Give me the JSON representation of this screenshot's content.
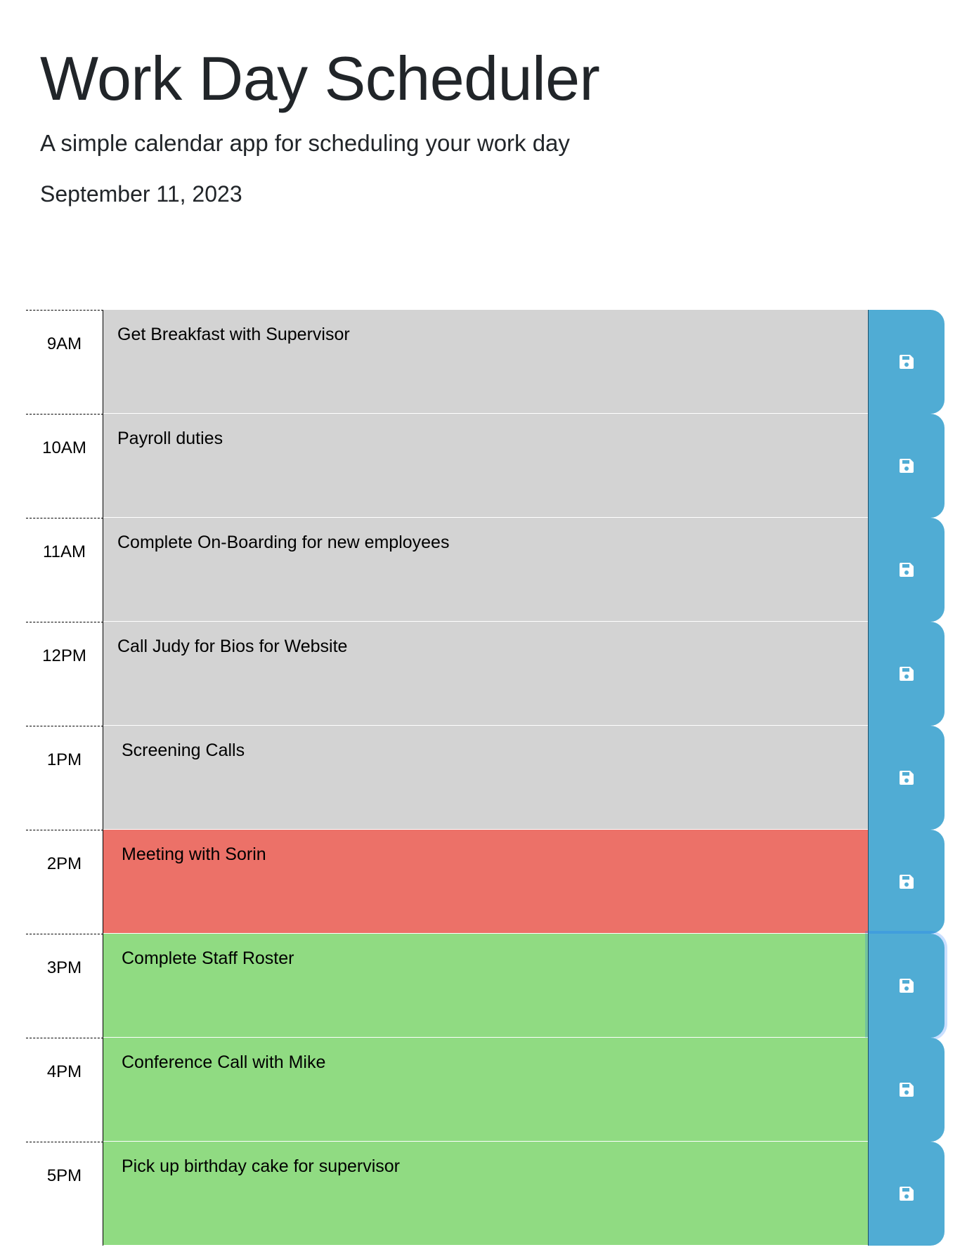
{
  "header": {
    "title": "Work Day Scheduler",
    "subtitle": "A simple calendar app for scheduling your work day",
    "date": "September 11, 2023"
  },
  "colors": {
    "past": "#d3d3d3",
    "present": "#ec7168",
    "future": "#90db82",
    "save_button": "#50acd4"
  },
  "rows": [
    {
      "hour": "9AM",
      "text": "Get Breakfast with Supervisor",
      "state": "past",
      "save_icon": "floppy-disk-icon"
    },
    {
      "hour": "10AM",
      "text": "Payroll duties",
      "state": "past",
      "save_icon": "floppy-disk-icon"
    },
    {
      "hour": "11AM",
      "text": "Complete On-Boarding for new employees",
      "state": "past",
      "save_icon": "floppy-disk-icon"
    },
    {
      "hour": "12PM",
      "text": "Call Judy for Bios for Website",
      "state": "past",
      "save_icon": "floppy-disk-icon"
    },
    {
      "hour": "1PM",
      "text": "Screening Calls",
      "state": "past",
      "save_icon": "floppy-disk-icon"
    },
    {
      "hour": "2PM",
      "text": "Meeting with Sorin",
      "state": "present",
      "save_icon": "floppy-disk-icon"
    },
    {
      "hour": "3PM",
      "text": "Complete Staff Roster",
      "state": "future",
      "save_icon": "floppy-disk-icon"
    },
    {
      "hour": "4PM",
      "text": "Conference Call with Mike",
      "state": "future",
      "save_icon": "floppy-disk-icon"
    },
    {
      "hour": "5PM",
      "text": "Pick up birthday cake for supervisor",
      "state": "future",
      "save_icon": "floppy-disk-icon"
    }
  ]
}
